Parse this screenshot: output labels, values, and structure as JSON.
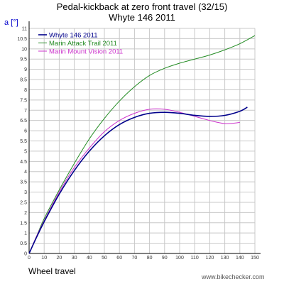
{
  "title": "Pedal-kickback at zero front travel (32/15)",
  "subtitle": "Whyte 146 2011",
  "credit": "www.bikechecker.com",
  "chart_data": {
    "type": "line",
    "xlabel": "Wheel travel",
    "ylabel": "a [°]",
    "xlim": [
      0,
      150
    ],
    "ylim": [
      0,
      11
    ],
    "xticks": [
      "0",
      "10",
      "20",
      "30",
      "40",
      "50",
      "60",
      "70",
      "80",
      "90",
      "100",
      "110",
      "120",
      "130",
      "140",
      "150"
    ],
    "yticks": [
      "0",
      "0.5",
      "1",
      "1.5",
      "2",
      "2.5",
      "3",
      "3.5",
      "4",
      "4.5",
      "5",
      "5.5",
      "6",
      "6.5",
      "7",
      "7.5",
      "8",
      "8.5",
      "9",
      "9.5",
      "10",
      "10.5",
      "11"
    ],
    "grid": true,
    "legend": "top-left",
    "series": [
      {
        "name": "Whyte 146 2011",
        "color": "#00008b",
        "x": [
          0,
          5,
          10,
          20,
          30,
          40,
          50,
          60,
          70,
          80,
          90,
          100,
          110,
          120,
          130,
          140,
          145
        ],
        "y": [
          0,
          0.8,
          1.55,
          2.9,
          4.05,
          5.0,
          5.75,
          6.3,
          6.65,
          6.85,
          6.9,
          6.85,
          6.75,
          6.7,
          6.75,
          6.95,
          7.15
        ]
      },
      {
        "name": "Marin Attack Trail 2011",
        "color": "#228b22",
        "x": [
          0,
          5,
          10,
          20,
          30,
          40,
          50,
          60,
          70,
          80,
          90,
          100,
          110,
          120,
          130,
          140,
          150
        ],
        "y": [
          0,
          0.85,
          1.7,
          3.1,
          4.4,
          5.6,
          6.6,
          7.45,
          8.15,
          8.7,
          9.05,
          9.3,
          9.5,
          9.7,
          9.95,
          10.25,
          10.65
        ]
      },
      {
        "name": "Marin Mount Vision 2011",
        "color": "#cc33cc",
        "x": [
          0,
          5,
          10,
          20,
          30,
          40,
          50,
          60,
          70,
          80,
          90,
          100,
          110,
          120,
          130,
          140
        ],
        "y": [
          0,
          0.85,
          1.6,
          3.0,
          4.2,
          5.15,
          5.95,
          6.5,
          6.85,
          7.05,
          7.05,
          6.9,
          6.7,
          6.5,
          6.35,
          6.4
        ]
      }
    ]
  }
}
